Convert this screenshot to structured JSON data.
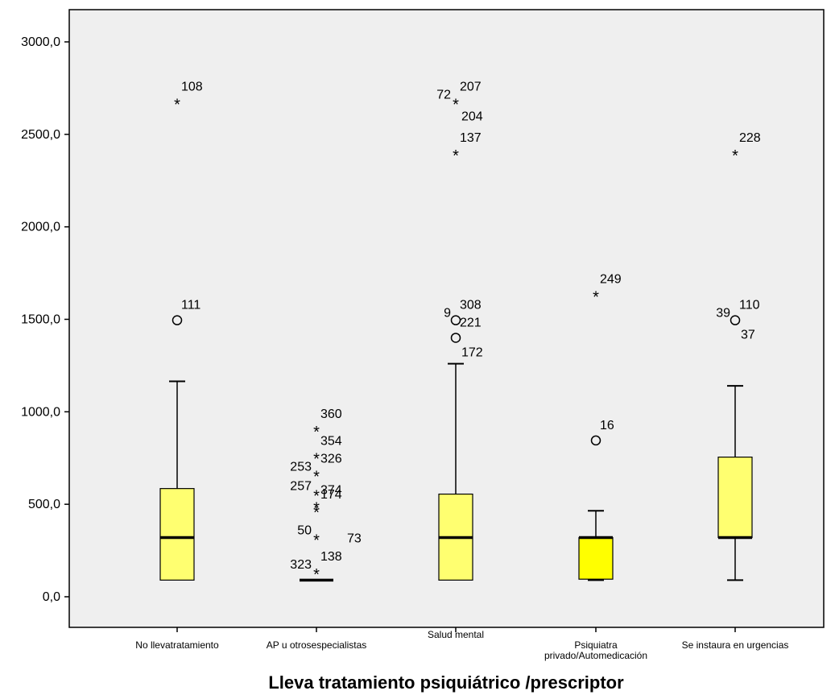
{
  "chart_data": {
    "type": "boxplot",
    "xlabel": "Lleva tratamiento psiquiátrico /prescriptor",
    "ylabel": "",
    "ylim": [
      -330,
      3350
    ],
    "yticks": [
      0,
      500,
      1000,
      1500,
      2000,
      2500,
      3000
    ],
    "ytick_labels": [
      "0,0",
      "500,0",
      "1000,0",
      "1500,0",
      "2000,0",
      "2500,0",
      "3000,0"
    ],
    "grid": false,
    "colors": {
      "plot_bg": "#efefef",
      "box_fill": "#ffff70",
      "box_fill_highlight": "#ffff00"
    },
    "categories": [
      {
        "label_lines": [
          "No llevatratamiento"
        ],
        "whisker_low": 90,
        "q1": 90,
        "median": 320,
        "q3": 585,
        "whisker_high": 1165,
        "box_color": "#ffff70",
        "outliers": [
          {
            "value": 1495,
            "kind": "circle",
            "label": "111",
            "label_side": "right"
          },
          {
            "value": 2675,
            "kind": "star",
            "label": "108",
            "label_side": "right"
          }
        ]
      },
      {
        "label_lines": [
          "AP u otrosespecialistas"
        ],
        "whisker_low": 90,
        "q1": 90,
        "median": 90,
        "q3": 90,
        "whisker_high": 90,
        "box_color": "#ffff70",
        "outliers": [
          {
            "value": 135,
            "kind": "star",
            "label": "138",
            "label_side": "right"
          },
          {
            "value": 135,
            "kind": "none",
            "label": "323",
            "label_side": "left"
          },
          {
            "value": 320,
            "kind": "star",
            "label": "50",
            "label_side": "left"
          },
          {
            "value": 320,
            "kind": "none",
            "label": "73",
            "label_side": "far-right"
          },
          {
            "value": 470,
            "kind": "star",
            "label": "174",
            "label_side": "right"
          },
          {
            "value": 495,
            "kind": "star",
            "label": "374",
            "label_side": "right"
          },
          {
            "value": 560,
            "kind": "star",
            "label": "257",
            "label_side": "left"
          },
          {
            "value": 665,
            "kind": "star",
            "label": "326",
            "label_side": "right"
          },
          {
            "value": 665,
            "kind": "none",
            "label": "253",
            "label_side": "left"
          },
          {
            "value": 760,
            "kind": "star",
            "label": "354",
            "label_side": "right"
          },
          {
            "value": 905,
            "kind": "star",
            "label": "360",
            "label_side": "right"
          }
        ]
      },
      {
        "label_lines": [
          "Salud mental"
        ],
        "whisker_low": 90,
        "q1": 90,
        "median": 320,
        "q3": 555,
        "whisker_high": 1260,
        "box_color": "#ffff70",
        "outliers": [
          {
            "value": 1400,
            "kind": "circle",
            "label": "221",
            "label_side": "right"
          },
          {
            "value": 1400,
            "kind": "none",
            "label": "172",
            "label_side": "below-right"
          },
          {
            "value": 1495,
            "kind": "circle",
            "label": "308",
            "label_side": "right"
          },
          {
            "value": 1495,
            "kind": "none",
            "label": "9",
            "label_side": "left"
          },
          {
            "value": 2400,
            "kind": "star",
            "label": "137",
            "label_side": "right"
          },
          {
            "value": 2675,
            "kind": "star",
            "label": "207",
            "label_side": "right"
          },
          {
            "value": 2675,
            "kind": "none",
            "label": "72",
            "label_side": "left"
          },
          {
            "value": 2675,
            "kind": "none",
            "label": "204",
            "label_side": "below-right"
          }
        ]
      },
      {
        "label_lines": [
          "Psiquiatra",
          "privado/Automedicación"
        ],
        "whisker_low": 90,
        "q1": 95,
        "median": 320,
        "q3": 320,
        "whisker_high": 465,
        "box_color": "#ffff00",
        "outliers": [
          {
            "value": 845,
            "kind": "circle",
            "label": "16",
            "label_side": "right"
          },
          {
            "value": 1635,
            "kind": "star",
            "label": "249",
            "label_side": "right"
          }
        ]
      },
      {
        "label_lines": [
          "Se instaura en urgencias"
        ],
        "whisker_low": 90,
        "q1": 320,
        "median": 320,
        "q3": 755,
        "whisker_high": 1140,
        "box_color": "#ffff70",
        "outliers": [
          {
            "value": 1495,
            "kind": "circle",
            "label": "110",
            "label_side": "right"
          },
          {
            "value": 1495,
            "kind": "none",
            "label": "39",
            "label_side": "left"
          },
          {
            "value": 1495,
            "kind": "none",
            "label": "37",
            "label_side": "below-right"
          },
          {
            "value": 2400,
            "kind": "star",
            "label": "228",
            "label_side": "right"
          }
        ]
      }
    ]
  }
}
